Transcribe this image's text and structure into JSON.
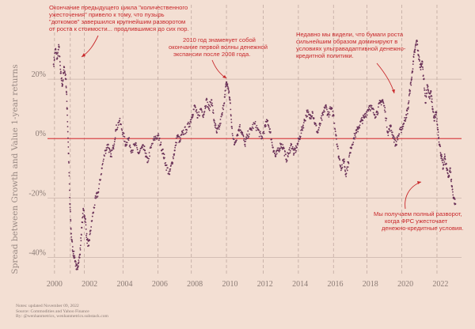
{
  "chart_data": {
    "type": "scatter",
    "ylabel": "Spread between Growth and Value 1-year returns",
    "x_ticks": [
      "2000",
      "2002",
      "2004",
      "2006",
      "2008",
      "2010",
      "2012",
      "2014",
      "2016",
      "2018",
      "2020",
      "2022"
    ],
    "y_ticks": [
      "20%",
      "0%",
      "-20%",
      "-40%"
    ],
    "x_range": [
      1999.6,
      2023.2
    ],
    "y_range": [
      -46,
      36
    ],
    "gridlines_y": [
      20,
      -20,
      -40
    ],
    "zero_line": 0,
    "dashed_years": [
      2000.0,
      2000.9,
      2001.7,
      2003.9,
      2005.9,
      2007.8,
      2009.8,
      2011.9,
      2013.9,
      2015.9,
      2017.8,
      2019.8,
      2021.8
    ],
    "series": [
      {
        "name": "Growth minus Value 1-year return spread",
        "color": "#6a3258",
        "points": [
          [
            1999.95,
            25
          ],
          [
            2000.05,
            30
          ],
          [
            2000.15,
            27
          ],
          [
            2000.25,
            31
          ],
          [
            2000.35,
            22
          ],
          [
            2000.45,
            18
          ],
          [
            2000.55,
            24
          ],
          [
            2000.65,
            20
          ],
          [
            2000.72,
            10
          ],
          [
            2000.8,
            -5
          ],
          [
            2000.88,
            -22
          ],
          [
            2000.95,
            -32
          ],
          [
            2001.05,
            -38
          ],
          [
            2001.15,
            -40
          ],
          [
            2001.25,
            -44
          ],
          [
            2001.35,
            -42
          ],
          [
            2001.45,
            -39
          ],
          [
            2001.55,
            -30
          ],
          [
            2001.65,
            -24
          ],
          [
            2001.75,
            -27
          ],
          [
            2001.85,
            -34
          ],
          [
            2001.95,
            -36
          ],
          [
            2002.05,
            -31
          ],
          [
            2002.2,
            -25
          ],
          [
            2002.35,
            -20
          ],
          [
            2002.5,
            -18
          ],
          [
            2002.7,
            -10
          ],
          [
            2002.9,
            -4
          ],
          [
            2003.05,
            -2
          ],
          [
            2003.2,
            -6
          ],
          [
            2003.35,
            -3
          ],
          [
            2003.5,
            3
          ],
          [
            2003.7,
            6
          ],
          [
            2003.9,
            2
          ],
          [
            2004.05,
            -2
          ],
          [
            2004.2,
            0
          ],
          [
            2004.4,
            -4
          ],
          [
            2004.6,
            -2
          ],
          [
            2004.8,
            -5
          ],
          [
            2005.0,
            -3
          ],
          [
            2005.15,
            -4
          ],
          [
            2005.3,
            -8
          ],
          [
            2005.5,
            -3
          ],
          [
            2005.7,
            0
          ],
          [
            2005.9,
            1
          ],
          [
            2006.05,
            -2
          ],
          [
            2006.2,
            -5
          ],
          [
            2006.35,
            -9
          ],
          [
            2006.55,
            -12
          ],
          [
            2006.7,
            -8
          ],
          [
            2006.85,
            -4
          ],
          [
            2007.0,
            1
          ],
          [
            2007.15,
            -1
          ],
          [
            2007.3,
            2
          ],
          [
            2007.5,
            3
          ],
          [
            2007.7,
            5
          ],
          [
            2007.85,
            8
          ],
          [
            2008.0,
            11
          ],
          [
            2008.15,
            7
          ],
          [
            2008.35,
            10
          ],
          [
            2008.5,
            8
          ],
          [
            2008.65,
            13
          ],
          [
            2008.8,
            10
          ],
          [
            2008.95,
            13
          ],
          [
            2009.1,
            6
          ],
          [
            2009.25,
            2
          ],
          [
            2009.4,
            4
          ],
          [
            2009.55,
            8
          ],
          [
            2009.7,
            14
          ],
          [
            2009.8,
            19
          ],
          [
            2009.9,
            17
          ],
          [
            2010.0,
            13
          ],
          [
            2010.1,
            4
          ],
          [
            2010.25,
            -2
          ],
          [
            2010.4,
            1
          ],
          [
            2010.55,
            4
          ],
          [
            2010.7,
            2
          ],
          [
            2010.85,
            -2
          ],
          [
            2011.0,
            1
          ],
          [
            2011.2,
            3
          ],
          [
            2011.4,
            5
          ],
          [
            2011.6,
            3
          ],
          [
            2011.8,
            0
          ],
          [
            2012.0,
            4
          ],
          [
            2012.15,
            6
          ],
          [
            2012.3,
            2
          ],
          [
            2012.45,
            -3
          ],
          [
            2012.6,
            -6
          ],
          [
            2012.75,
            -4
          ],
          [
            2012.9,
            -2
          ],
          [
            2013.05,
            -3
          ],
          [
            2013.2,
            -7
          ],
          [
            2013.35,
            -5
          ],
          [
            2013.5,
            -2
          ],
          [
            2013.65,
            -5
          ],
          [
            2013.8,
            -3
          ],
          [
            2013.95,
            0
          ],
          [
            2014.1,
            3
          ],
          [
            2014.25,
            6
          ],
          [
            2014.4,
            9
          ],
          [
            2014.55,
            7
          ],
          [
            2014.7,
            9
          ],
          [
            2014.85,
            5
          ],
          [
            2015.0,
            2
          ],
          [
            2015.15,
            5
          ],
          [
            2015.3,
            8
          ],
          [
            2015.45,
            11
          ],
          [
            2015.6,
            8
          ],
          [
            2015.75,
            10
          ],
          [
            2015.9,
            8
          ],
          [
            2016.05,
            1
          ],
          [
            2016.2,
            -6
          ],
          [
            2016.35,
            -10
          ],
          [
            2016.5,
            -7
          ],
          [
            2016.6,
            -12
          ],
          [
            2016.75,
            -8
          ],
          [
            2016.9,
            -3
          ],
          [
            2017.05,
            0
          ],
          [
            2017.2,
            2
          ],
          [
            2017.35,
            4
          ],
          [
            2017.5,
            6
          ],
          [
            2017.65,
            7
          ],
          [
            2017.8,
            9
          ],
          [
            2017.95,
            11
          ],
          [
            2018.1,
            10
          ],
          [
            2018.25,
            8
          ],
          [
            2018.4,
            9
          ],
          [
            2018.55,
            12
          ],
          [
            2018.7,
            13
          ],
          [
            2018.85,
            9
          ],
          [
            2019.0,
            2
          ],
          [
            2019.15,
            4
          ],
          [
            2019.3,
            1
          ],
          [
            2019.45,
            -2
          ],
          [
            2019.6,
            1
          ],
          [
            2019.75,
            3
          ],
          [
            2019.9,
            5
          ],
          [
            2020.05,
            8
          ],
          [
            2020.15,
            10
          ],
          [
            2020.25,
            16
          ],
          [
            2020.35,
            20
          ],
          [
            2020.45,
            26
          ],
          [
            2020.55,
            30
          ],
          [
            2020.65,
            33
          ],
          [
            2020.75,
            28
          ],
          [
            2020.85,
            24
          ],
          [
            2020.95,
            26
          ],
          [
            2021.05,
            20
          ],
          [
            2021.15,
            12
          ],
          [
            2021.25,
            18
          ],
          [
            2021.35,
            14
          ],
          [
            2021.45,
            16
          ],
          [
            2021.55,
            10
          ],
          [
            2021.65,
            6
          ],
          [
            2021.75,
            9
          ],
          [
            2021.85,
            3
          ],
          [
            2021.95,
            -2
          ],
          [
            2022.05,
            -6
          ],
          [
            2022.15,
            -10
          ],
          [
            2022.25,
            -6
          ],
          [
            2022.35,
            -10
          ],
          [
            2022.45,
            -13
          ],
          [
            2022.55,
            -10
          ],
          [
            2022.65,
            -16
          ],
          [
            2022.75,
            -20
          ],
          [
            2022.85,
            -22
          ]
        ]
      }
    ],
    "annotations": [
      "Окончание предыдущего цикла \"количественного ужесточения\" привело к тому, что пузырь \"доткомов\" завершился крупнейшим разворотом от роста к стоимости... продлившимся до сих пор.",
      "2010 год знаменует собой окончание первой волны денежной экспансии после 2008 года.",
      "Недавно мы видели, что бумаги роста сильнейшим образом доминируют в условиях ультравадаптивной денежно-кредитной политики.",
      "Мы получаем полный разворот, когда ФРС ужесточает денежно-кредитные условия."
    ]
  },
  "annotation_lines": {
    "a1": [
      "Окончание предыдущего цикла \"количественного",
      "ужесточения\" привело к тому, что пузырь",
      "\"доткомов\" завершился крупнейшим разворотом",
      "от роста к стоимости... продлившимся до сих пор."
    ],
    "a2": [
      "2010 год знаменует собой",
      "окончание первой волны денежной",
      "экспансии после 2008 года."
    ],
    "a3": [
      "Недавно мы видели, что бумаги роста",
      "сильнейшим образом доминируют в",
      "условиях ультравадаптивной денежно-",
      "кредитной политики."
    ],
    "a4": [
      "Мы получаем полный разворот,",
      "когда ФРС ужесточает",
      "денежно-кредитные условия."
    ]
  },
  "notes": {
    "line1": "Notes: updated November 09, 2022",
    "line2": "Source: Commodities and Yahoo Finance",
    "line3": "By: @wenhanmetrics, wenhanmetrics.substack.com"
  },
  "colors": {
    "background": "#f3dfd3",
    "points": "#6a3258",
    "zero_line": "#d9474a",
    "grid": "#c9b3aa",
    "annotation": "#c8282b"
  }
}
